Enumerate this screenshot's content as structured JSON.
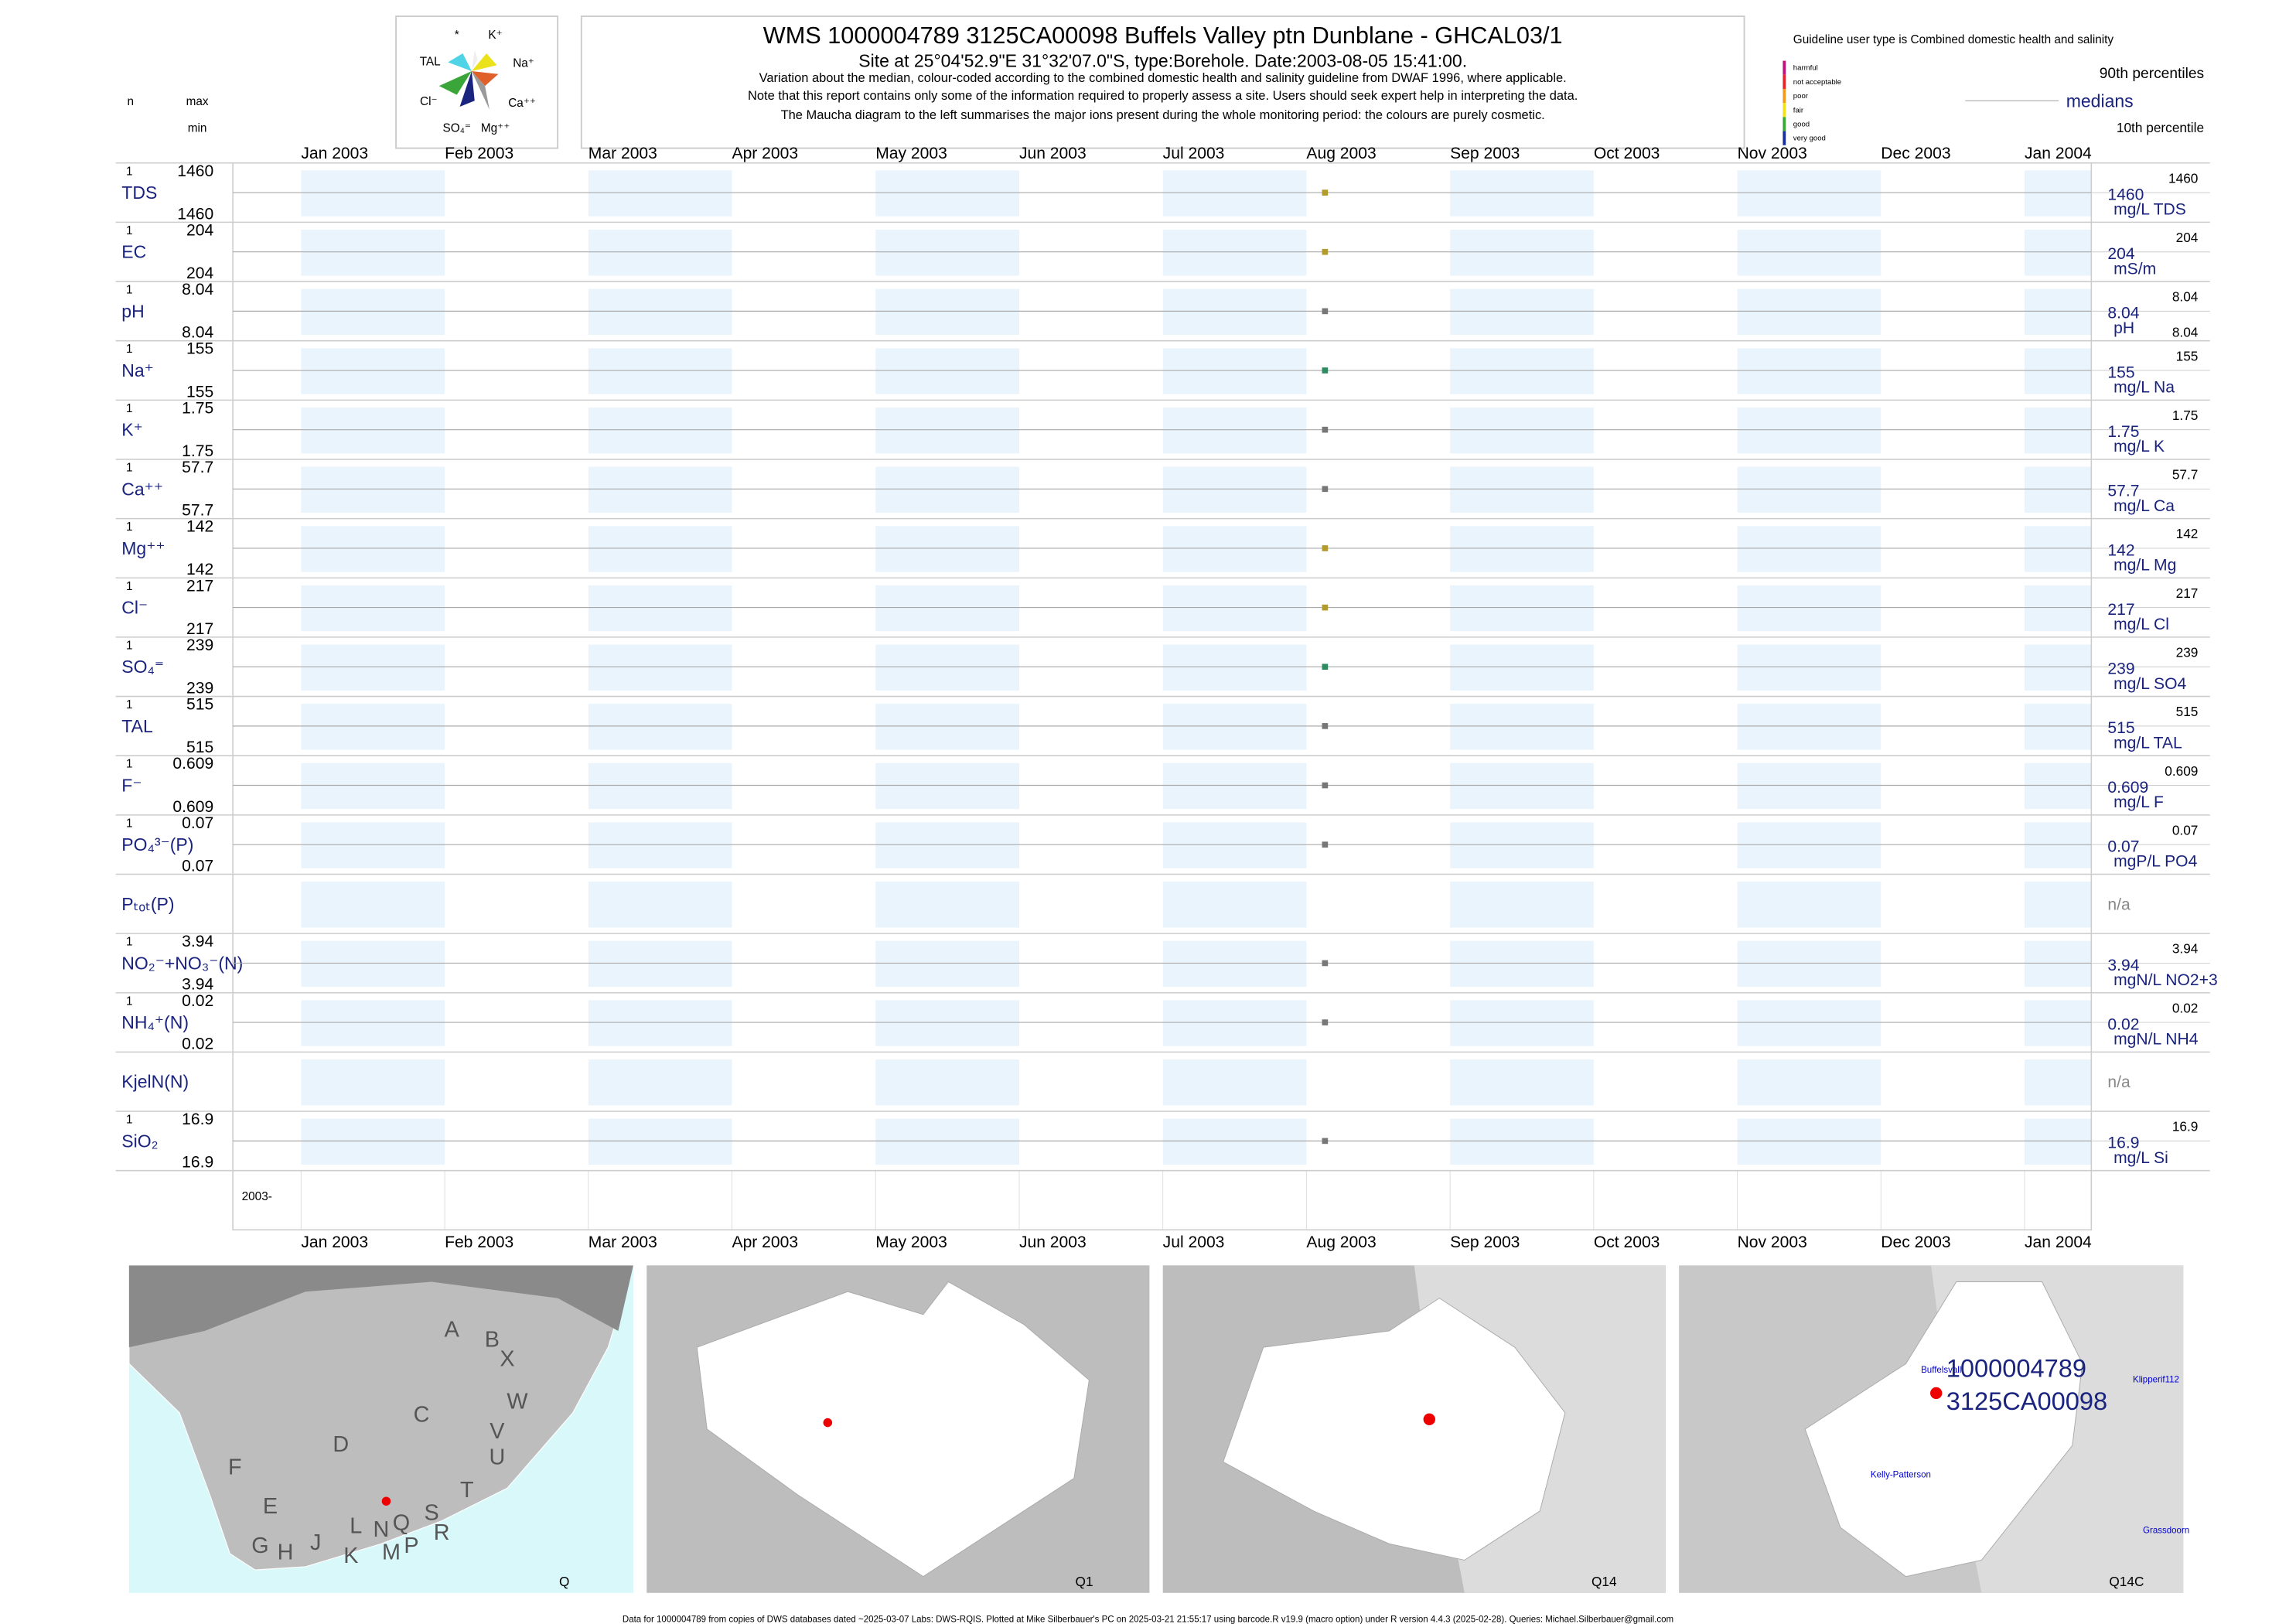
{
  "header": {
    "title": "WMS 1000004789 3125CA00098 Buffels Valley ptn Dunblane - GHCAL03/1",
    "subtitle_parts": [
      "Site at 25°04'52.9\"E 31°32'07.0\"S, type:Borehole. Date:",
      "2003-08-05",
      " 15:41:00."
    ],
    "notes": [
      "Variation about the median,  colour-coded according to the combined domestic health and salinity guideline from DWAF 1996, where applicable.",
      "Note that this report contains only some of the information required to properly assess a site. Users should seek expert help in interpreting the data.",
      "The Maucha diagram to the left summarises the major ions present during the whole monitoring period: the colours are purely cosmetic."
    ],
    "column_n": "n",
    "column_max": "max",
    "column_min": "min"
  },
  "maucha_labels": [
    "*",
    "K⁺",
    "TAL",
    "Na⁺",
    "Cl⁻",
    "Ca⁺⁺",
    "SO₄⁼",
    "Mg⁺⁺"
  ],
  "legend": {
    "guideline": "Guideline user type is Combined domestic health and salinity",
    "classes": [
      {
        "label": "harmful",
        "color": "#c0137f"
      },
      {
        "label": "not acceptable",
        "color": "#e8242b"
      },
      {
        "label": "poor",
        "color": "#f39a1e"
      },
      {
        "label": "fair",
        "color": "#f0e21c"
      },
      {
        "label": "good",
        "color": "#3aa63a"
      },
      {
        "label": "very good",
        "color": "#1b2f9c"
      }
    ],
    "p90": "90th percentiles",
    "median": "medians",
    "p10": "10th percentile"
  },
  "months": [
    "Jan 2003",
    "Feb 2003",
    "Mar 2003",
    "Apr 2003",
    "May 2003",
    "Jun 2003",
    "Jul 2003",
    "Aug 2003",
    "Sep 2003",
    "Oct 2003",
    "Nov 2003",
    "Dec 2003",
    "Jan 2004"
  ],
  "year_label": "2003-",
  "rows": [
    {
      "label": "TDS",
      "n": 1,
      "max": 1460,
      "min": 1460,
      "median": 1460,
      "p90": 1460,
      "unit": "mg/L TDS",
      "color": "#b29a2c"
    },
    {
      "label": "EC",
      "n": 1,
      "max": 204,
      "min": 204,
      "median": 204,
      "p90": 204,
      "unit": "mS/m",
      "color": "#b29a2c"
    },
    {
      "label": "pH",
      "n": 1,
      "max": 8.04,
      "min": 8.04,
      "median": 8.04,
      "p90": 8.04,
      "p10": 8.04,
      "unit": "pH",
      "color": "#777777"
    },
    {
      "label": "Na⁺",
      "n": 1,
      "max": 155,
      "min": 155,
      "median": 155,
      "p90": 155,
      "unit": "mg/L Na",
      "color": "#2f8a5f"
    },
    {
      "label": "K⁺",
      "n": 1,
      "max": 1.75,
      "min": 1.75,
      "median": 1.75,
      "p90": 1.75,
      "unit": "mg/L K",
      "color": "#777777"
    },
    {
      "label": "Ca⁺⁺",
      "n": 1,
      "max": 57.7,
      "min": 57.7,
      "median": 57.7,
      "p90": 57.7,
      "unit": "mg/L Ca",
      "color": "#777777"
    },
    {
      "label": "Mg⁺⁺",
      "n": 1,
      "max": 142,
      "min": 142,
      "median": 142,
      "p90": 142,
      "unit": "mg/L Mg",
      "color": "#b29a2c"
    },
    {
      "label": "Cl⁻",
      "n": 1,
      "max": 217,
      "min": 217,
      "median": 217,
      "p90": 217,
      "unit": "mg/L Cl",
      "color": "#b29a2c"
    },
    {
      "label": "SO₄⁼",
      "n": 1,
      "max": 239,
      "min": 239,
      "median": 239,
      "p90": 239,
      "unit": "mg/L SO4",
      "color": "#2f8a5f"
    },
    {
      "label": "TAL",
      "n": 1,
      "max": 515,
      "min": 515,
      "median": 515,
      "p90": 515,
      "unit": "mg/L TAL",
      "color": "#777777"
    },
    {
      "label": "F⁻",
      "n": 1,
      "max": 0.609,
      "min": 0.609,
      "median": 0.609,
      "p90": 0.609,
      "unit": "mg/L F",
      "color": "#777777"
    },
    {
      "label": "PO₄³⁻(P)",
      "n": 1,
      "max": 0.07,
      "min": 0.07,
      "median": 0.07,
      "p90": 0.07,
      "unit": "mgP/L PO4",
      "color": "#777777"
    },
    {
      "label": "Pₜₒₜ(P)",
      "status": "n/a"
    },
    {
      "label": "NO₂⁻+NO₃⁻(N)",
      "n": 1,
      "max": 3.94,
      "min": 3.94,
      "median": 3.94,
      "p90": 3.94,
      "unit": "mgN/L NO2+3",
      "color": "#777777"
    },
    {
      "label": "NH₄⁺(N)",
      "n": 1,
      "max": 0.02,
      "min": 0.02,
      "median": 0.02,
      "p90": 0.02,
      "unit": "mgN/L NH4",
      "color": "#777777"
    },
    {
      "label": "KjelN(N)",
      "status": "n/a"
    },
    {
      "label": "SiO₂",
      "n": 1,
      "max": 16.9,
      "min": 16.9,
      "median": 16.9,
      "p90": 16.9,
      "unit": "mg/L Si",
      "color": "#777777"
    }
  ],
  "maps": [
    {
      "name": "Q",
      "labels": [
        "A",
        "B",
        "X",
        "W",
        "C",
        "V",
        "U",
        "D",
        "T",
        "F",
        "E",
        "L",
        "N",
        "Q",
        "S",
        "R",
        "G",
        "H",
        "J",
        "K",
        "M",
        "P"
      ]
    },
    {
      "name": "Q1",
      "labels": []
    },
    {
      "name": "Q14",
      "labels": []
    },
    {
      "name": "Q14C",
      "labels": [
        "Buffelsvall",
        "1000004789",
        "3125CA00098",
        "Klipperif112",
        "Kelly-Patterson",
        "Grassdoorn"
      ]
    }
  ],
  "footer": "Data for 1000004789 from copies of DWS databases dated ~2025-03-07 Labs: DWS-RQIS. Plotted at Mike Silberbauer's PC on 2025-03-21 21:55:17 using barcode.R v19.9 (macro option) under R version 4.4.3 (2025-02-28). Queries: Michael.Silberbauer@gmail.com"
}
